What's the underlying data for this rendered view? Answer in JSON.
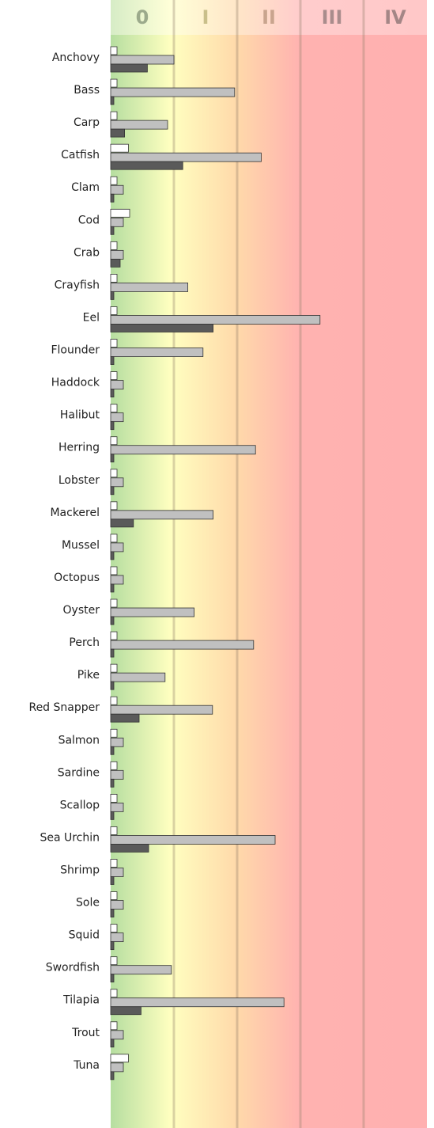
{
  "chart_data": {
    "type": "hbar",
    "categories": [
      "Anchovy",
      "Bass",
      "Carp",
      "Catfish",
      "Clam",
      "Cod",
      "Crab",
      "Crayfish",
      "Eel",
      "Flounder",
      "Haddock",
      "Halibut",
      "Herring",
      "Lobster",
      "Mackerel",
      "Mussel",
      "Octopus",
      "Oyster",
      "Perch",
      "Pike",
      "Red Snapper",
      "Salmon",
      "Sardine",
      "Scallop",
      "Sea Urchin",
      "Shrimp",
      "Sole",
      "Squid",
      "Swordfish",
      "Tilapia",
      "Trout",
      "Tuna"
    ],
    "series": [
      {
        "color": "#ffffff",
        "values": [
          0.1,
          0.1,
          0.1,
          0.28,
          0.1,
          0.3,
          0.1,
          0.1,
          0.1,
          0.1,
          0.1,
          0.1,
          0.1,
          0.1,
          0.1,
          0.1,
          0.1,
          0.1,
          0.1,
          0.1,
          0.1,
          0.1,
          0.1,
          0.1,
          0.1,
          0.1,
          0.1,
          0.1,
          0.1,
          0.1,
          0.1,
          0.28
        ]
      },
      {
        "color": "#c0c0c0",
        "values": [
          1.0,
          1.96,
          0.9,
          2.38,
          0.2,
          0.2,
          0.2,
          1.22,
          3.31,
          1.46,
          0.2,
          0.2,
          2.29,
          0.2,
          1.62,
          0.2,
          0.2,
          1.32,
          2.26,
          0.86,
          1.61,
          0.2,
          0.2,
          0.2,
          2.6,
          0.2,
          0.2,
          0.2,
          0.96,
          2.74,
          0.2,
          0.2
        ]
      },
      {
        "color": "#5a5a5a",
        "values": [
          0.58,
          0.05,
          0.22,
          1.14,
          0.05,
          0.05,
          0.15,
          0.05,
          1.62,
          0.05,
          0.05,
          0.05,
          0.05,
          0.05,
          0.36,
          0.05,
          0.05,
          0.05,
          0.05,
          0.05,
          0.45,
          0.05,
          0.05,
          0.05,
          0.6,
          0.05,
          0.05,
          0.05,
          0.05,
          0.48,
          0.05,
          0.05
        ]
      }
    ],
    "xlim": [
      0,
      5
    ],
    "xticks": [
      1,
      2,
      3,
      4
    ],
    "zones": [
      {
        "label": "0",
        "color": "#9caa8c"
      },
      {
        "label": "I",
        "color": "#c9bf8a"
      },
      {
        "label": "II",
        "color": "#c9a48e"
      },
      {
        "label": "III",
        "color": "#a98c8c"
      },
      {
        "label": "IV",
        "color": "#a48686"
      }
    ]
  }
}
